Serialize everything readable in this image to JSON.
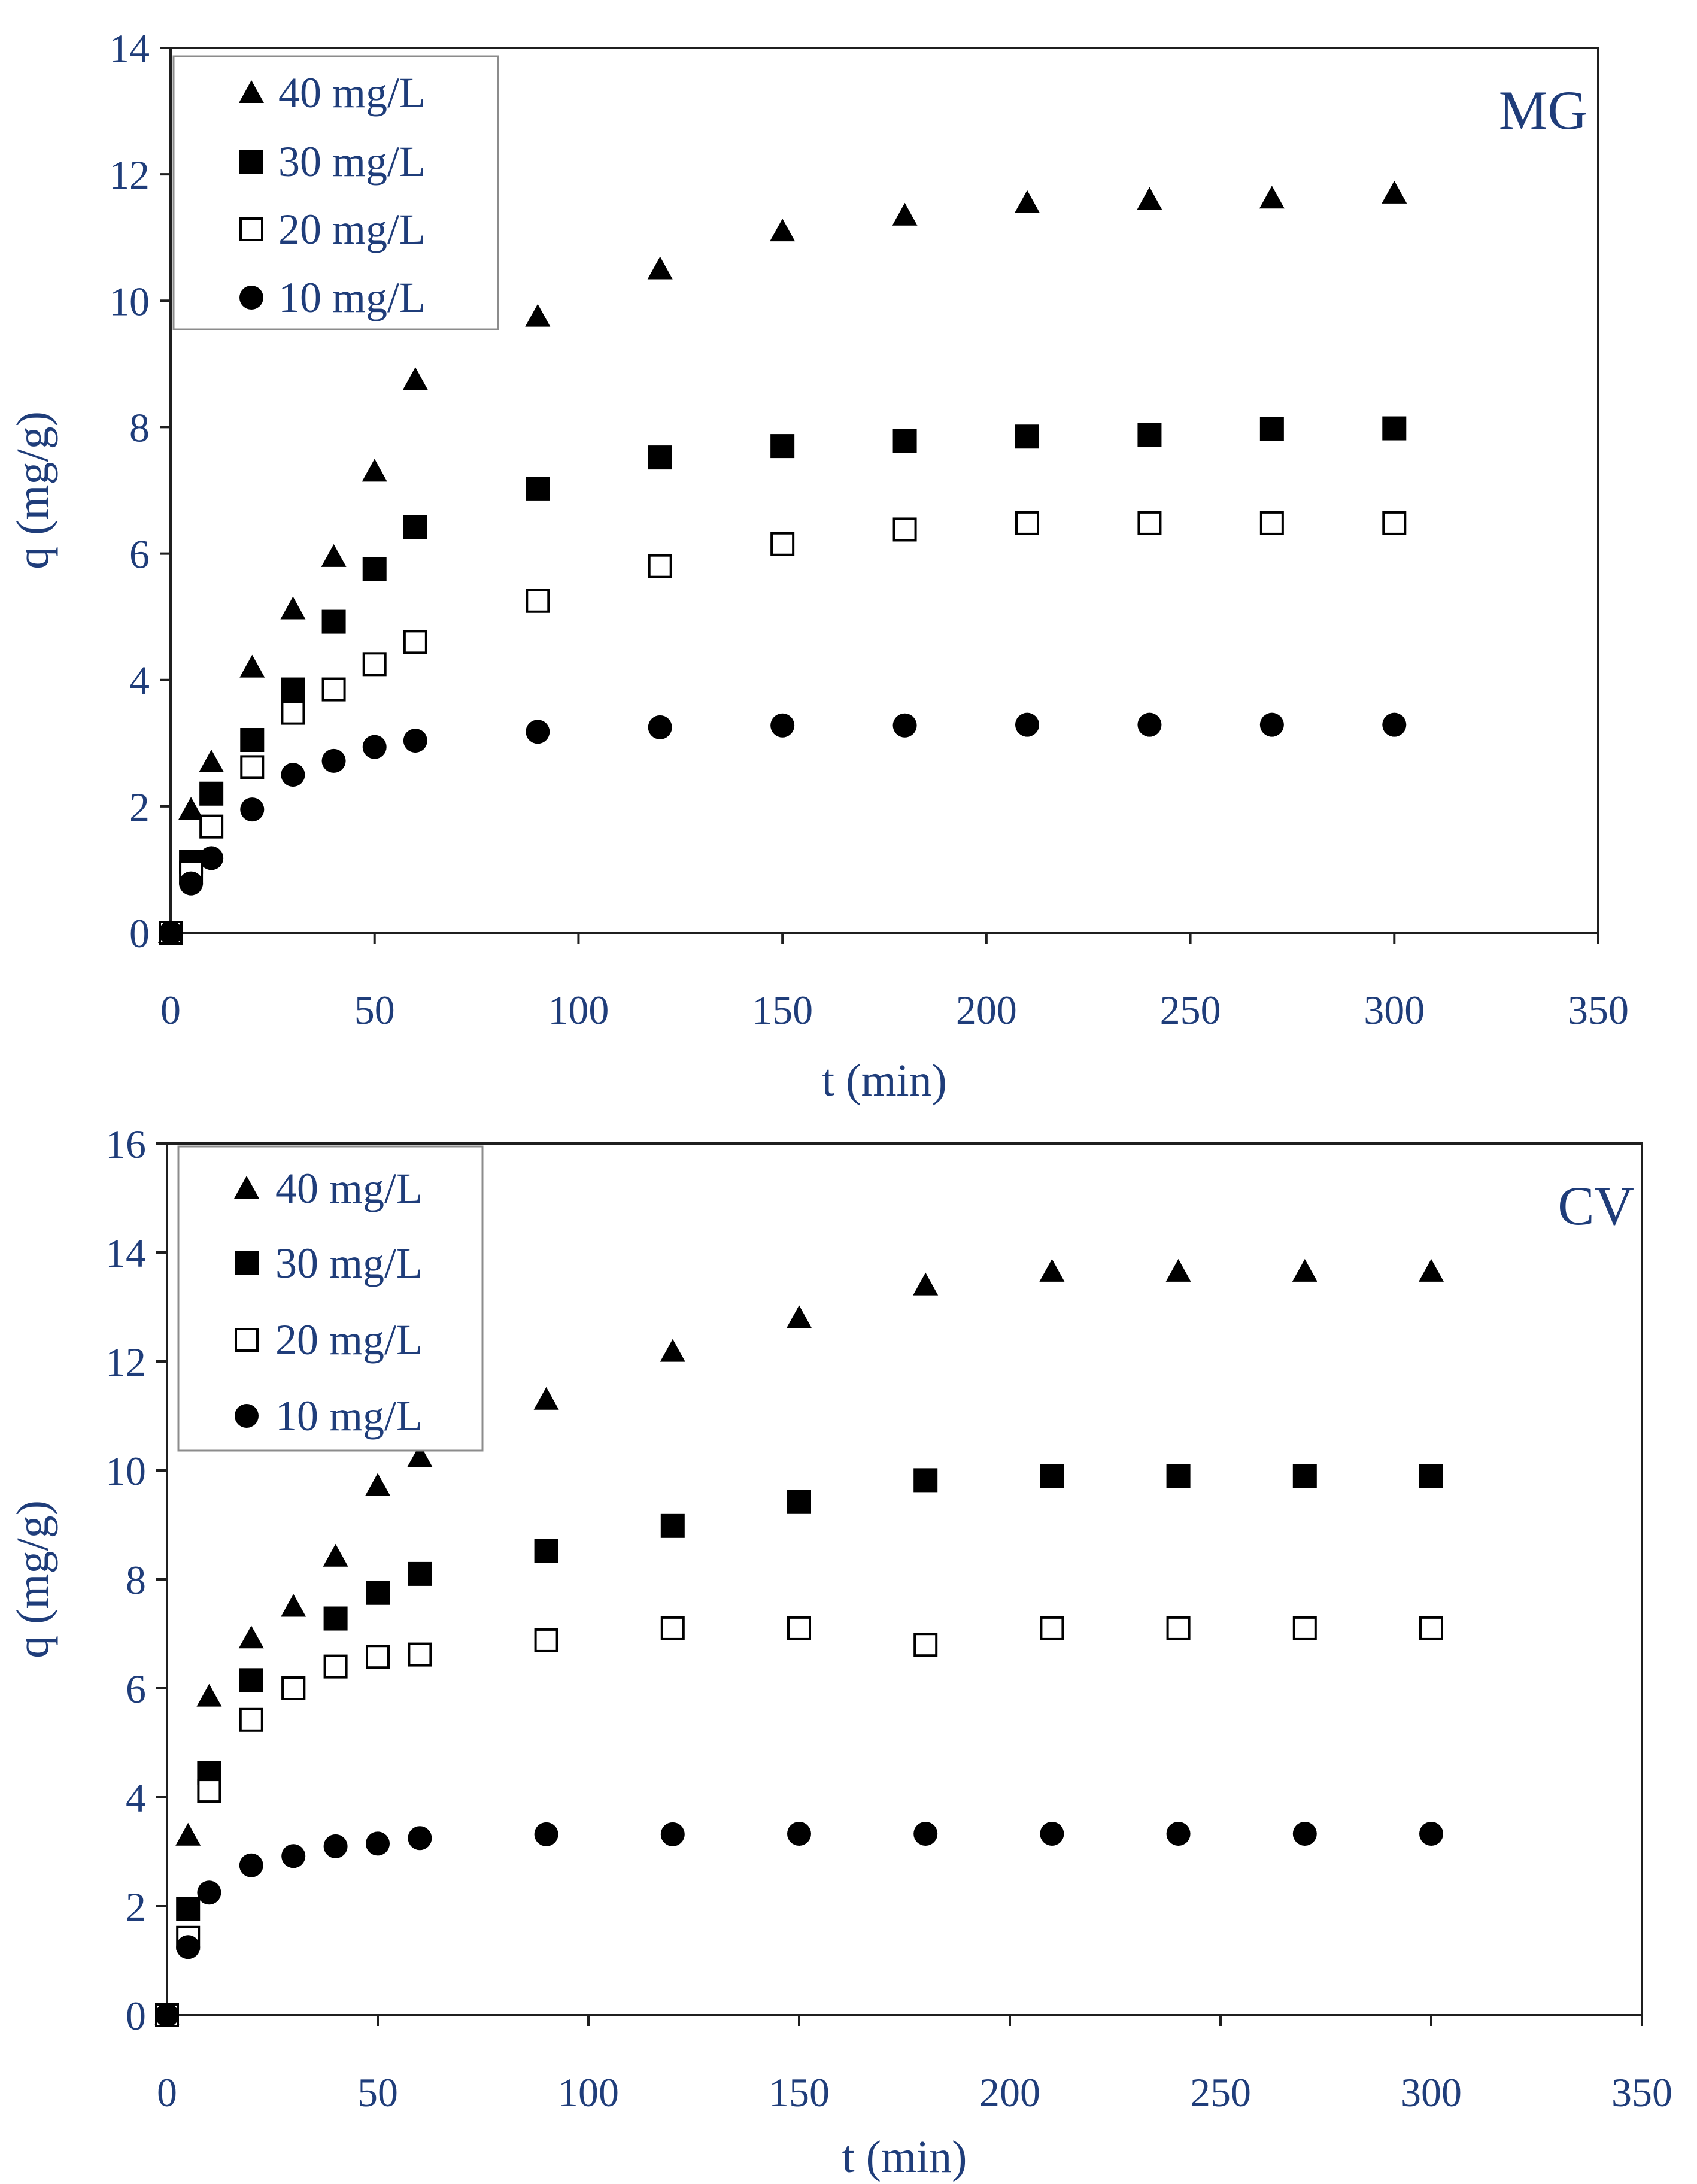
{
  "chart_data": [
    {
      "type": "scatter",
      "title": "MG",
      "xlabel": "t  (min)",
      "ylabel": "q (mg/g)",
      "xlim": [
        0,
        350
      ],
      "ylim": [
        0,
        14
      ],
      "x_ticks": [
        "0",
        "50",
        "100",
        "150",
        "200",
        "250",
        "300",
        "350"
      ],
      "y_ticks": [
        "0",
        "2",
        "4",
        "6",
        "8",
        "10",
        "12",
        "14"
      ],
      "grid": false,
      "legend_position": "top-left",
      "x": [
        0,
        5,
        10,
        20,
        30,
        40,
        50,
        60,
        90,
        120,
        150,
        180,
        210,
        240,
        270,
        300
      ],
      "series": [
        {
          "name": "40 mg/L",
          "marker": "filled-triangle",
          "values": [
            0,
            1.95,
            2.7,
            4.2,
            5.12,
            5.95,
            7.3,
            8.75,
            9.75,
            10.5,
            11.1,
            11.35,
            11.55,
            11.6,
            11.62,
            11.7
          ]
        },
        {
          "name": "30 mg/L",
          "marker": "filled-square",
          "values": [
            0,
            1.12,
            2.2,
            3.05,
            3.85,
            4.92,
            5.75,
            6.42,
            7.02,
            7.52,
            7.7,
            7.78,
            7.85,
            7.88,
            7.97,
            7.98
          ]
        },
        {
          "name": "20 mg/L",
          "marker": "open-square",
          "values": [
            0,
            0.95,
            1.68,
            2.62,
            3.48,
            3.85,
            4.25,
            4.6,
            5.25,
            5.8,
            6.15,
            6.38,
            6.48,
            6.48,
            6.48,
            6.48
          ]
        },
        {
          "name": "10 mg/L",
          "marker": "filled-circle",
          "values": [
            0,
            0.78,
            1.18,
            1.95,
            2.5,
            2.72,
            2.94,
            3.04,
            3.18,
            3.25,
            3.28,
            3.28,
            3.29,
            3.29,
            3.29,
            3.29
          ]
        }
      ]
    },
    {
      "type": "scatter",
      "title": "CV",
      "xlabel": "t (min)",
      "ylabel": "q (mg/g)",
      "xlim": [
        0,
        350
      ],
      "ylim": [
        0,
        16
      ],
      "x_ticks": [
        "0",
        "50",
        "100",
        "150",
        "200",
        "250",
        "300",
        "350"
      ],
      "y_ticks": [
        "0",
        "2",
        "4",
        "6",
        "8",
        "10",
        "12",
        "14",
        "16"
      ],
      "grid": false,
      "legend_position": "top-left",
      "x": [
        0,
        5,
        10,
        20,
        30,
        40,
        50,
        60,
        90,
        120,
        150,
        180,
        210,
        240,
        270,
        300
      ],
      "series": [
        {
          "name": "40 mg/L",
          "marker": "filled-triangle",
          "values": [
            0,
            3.3,
            5.85,
            6.92,
            7.5,
            8.42,
            9.72,
            10.25,
            11.3,
            12.18,
            12.8,
            13.4,
            13.65,
            13.65,
            13.65,
            13.65
          ]
        },
        {
          "name": "30 mg/L",
          "marker": "filled-square",
          "values": [
            0,
            1.95,
            4.45,
            6.15,
            6.0,
            7.28,
            7.75,
            8.1,
            8.52,
            8.98,
            9.42,
            9.82,
            9.9,
            9.9,
            9.9,
            9.9
          ]
        },
        {
          "name": "20 mg/L",
          "marker": "open-square",
          "values": [
            0,
            1.42,
            4.12,
            5.42,
            6.0,
            6.4,
            6.58,
            6.62,
            6.88,
            7.1,
            7.1,
            6.8,
            7.1,
            7.1,
            7.1,
            7.1
          ]
        },
        {
          "name": "10 mg/L",
          "marker": "filled-circle",
          "values": [
            0,
            1.25,
            2.25,
            2.75,
            2.92,
            3.1,
            3.15,
            3.25,
            3.32,
            3.32,
            3.33,
            3.33,
            3.33,
            3.33,
            3.33,
            3.33
          ]
        }
      ]
    }
  ]
}
